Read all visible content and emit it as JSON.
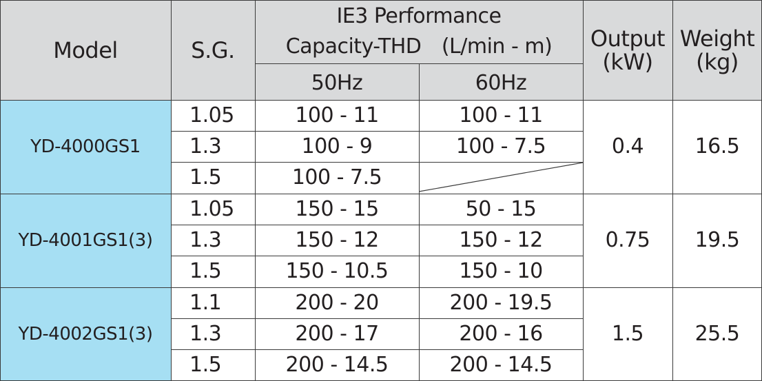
{
  "header": {
    "model": "Model",
    "sg": "S.G.",
    "perf_line1": "IE3  Performance",
    "perf_line2": "Capacity-THD　(L/min - m)",
    "hz50": "50Hz",
    "hz60": "60Hz",
    "output_line1": "Output",
    "output_line2": "(kW)",
    "weight_line1": "Weight",
    "weight_line2": "(kg)"
  },
  "groups": [
    {
      "model": "YD-4000GS1",
      "output": "0.4",
      "weight": "16.5",
      "rows": [
        {
          "sg": "1.05",
          "hz50": "100 - 11",
          "hz60": "100 - 11"
        },
        {
          "sg": "1.3",
          "hz50": "100 - 9",
          "hz60": "100 - 7.5"
        },
        {
          "sg": "1.5",
          "hz50": "100 - 7.5",
          "hz60": ""
        }
      ]
    },
    {
      "model": "YD-4001GS1(3)",
      "output": "0.75",
      "weight": "19.5",
      "rows": [
        {
          "sg": "1.05",
          "hz50": "150 - 15",
          "hz60": "50 - 15"
        },
        {
          "sg": "1.3",
          "hz50": "150 - 12",
          "hz60": "150 - 12"
        },
        {
          "sg": "1.5",
          "hz50": "150 - 10.5",
          "hz60": "150 - 10"
        }
      ]
    },
    {
      "model": "YD-4002GS1(3)",
      "output": "1.5",
      "weight": "25.5",
      "rows": [
        {
          "sg": "1.1",
          "hz50": "200 - 20",
          "hz60": "200 - 19.5"
        },
        {
          "sg": "1.3",
          "hz50": "200 - 17",
          "hz60": "200 - 16"
        },
        {
          "sg": "1.5",
          "hz50": "200 - 14.5",
          "hz60": "200 - 14.5"
        }
      ]
    }
  ],
  "colors": {
    "header_bg": "#d9dadb",
    "model_bg": "#a6dff3",
    "grid": "#3a3a3a",
    "text": "#231f20"
  }
}
